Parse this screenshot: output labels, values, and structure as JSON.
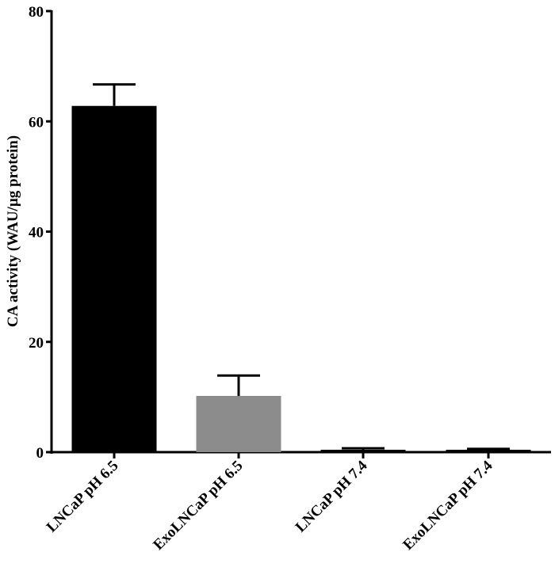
{
  "chart_data": {
    "type": "bar",
    "title": "",
    "xlabel": "",
    "ylabel": "CA activity (WAU/µg protein)",
    "ylim": [
      0,
      80
    ],
    "yticks": [
      0,
      20,
      40,
      60,
      80
    ],
    "grid": false,
    "legend": null,
    "categories": [
      "LNCaP pH 6.5",
      "ExoLNCaP pH 6.5",
      "LNCaP pH 7.4",
      "ExoLNCaP pH 7.4"
    ],
    "values": [
      62.8,
      10.2,
      0.1,
      0.4
    ],
    "error_upper": [
      3.9,
      3.7,
      0.6,
      0.2
    ],
    "colors": [
      "#000000",
      "#8c8c8c",
      "#000000",
      "#000000"
    ]
  }
}
